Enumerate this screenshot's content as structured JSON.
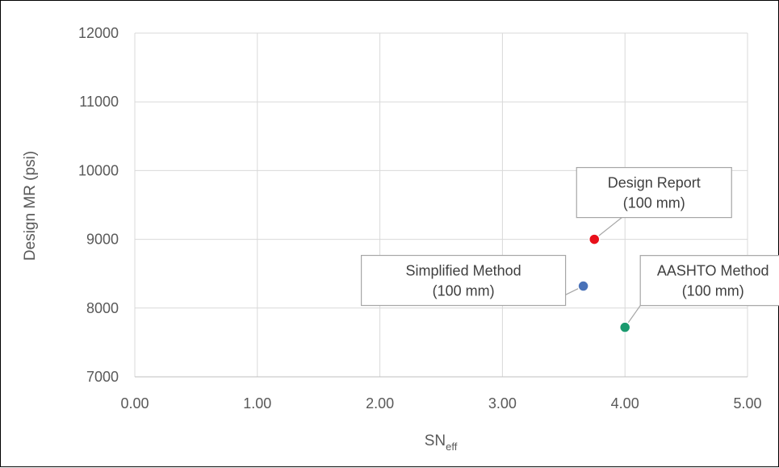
{
  "chart_data": {
    "type": "scatter",
    "xlabel": "SN",
    "xlabel_subscript": "eff",
    "ylabel": "Design MR (psi)",
    "xlim": [
      0,
      5
    ],
    "ylim": [
      7000,
      12000
    ],
    "x_ticks": [
      "0.00",
      "1.00",
      "2.00",
      "3.00",
      "4.00",
      "5.00"
    ],
    "y_ticks": [
      "7000",
      "8000",
      "9000",
      "10000",
      "11000",
      "12000"
    ],
    "grid": true,
    "points": [
      {
        "x": 3.75,
        "y": 9000,
        "color": "#e8101a",
        "label_line1": "Design Report",
        "label_line2": "(100 mm)"
      },
      {
        "x": 3.66,
        "y": 8320,
        "color": "#4a72b8",
        "label_line1": "Simplified Method",
        "label_line2": "(100 mm)"
      },
      {
        "x": 4.0,
        "y": 7720,
        "color": "#1a9a6e",
        "label_line1": "AASHTO Method",
        "label_line2": "(100 mm)"
      }
    ]
  }
}
